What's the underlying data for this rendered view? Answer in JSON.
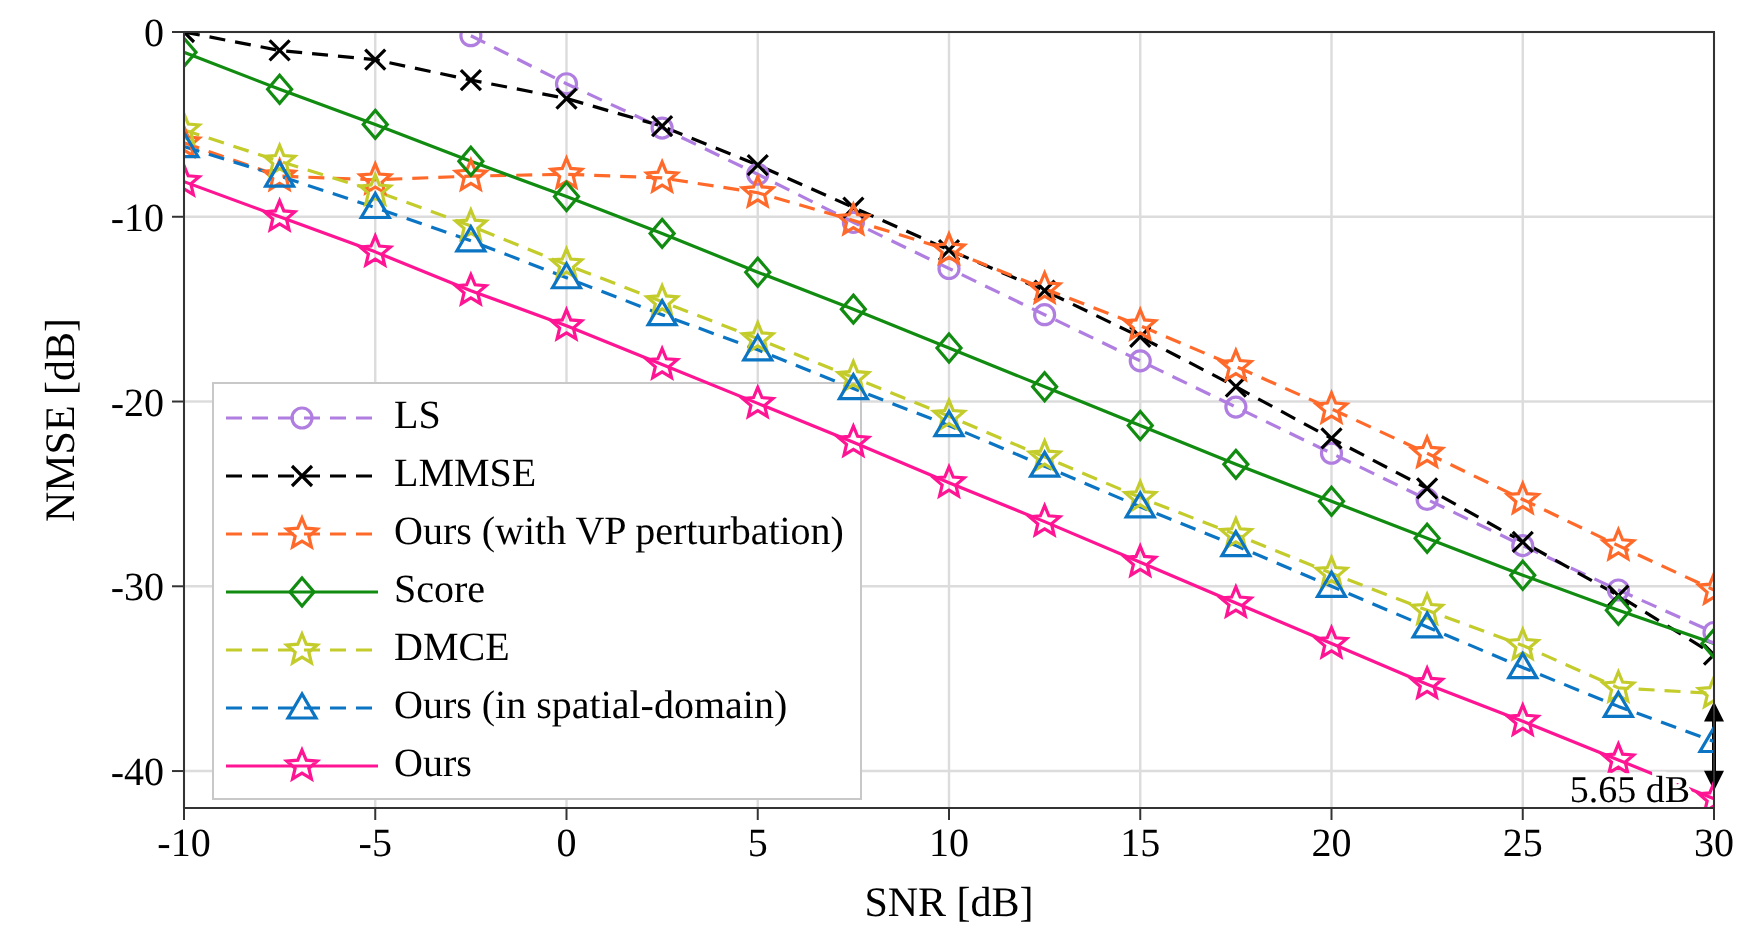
{
  "chart_data": {
    "type": "line",
    "xlabel": "SNR [dB]",
    "ylabel": "NMSE [dB]",
    "x": [
      -10,
      -7.5,
      -5,
      -2.5,
      0,
      2.5,
      5,
      7.5,
      10,
      12.5,
      15,
      17.5,
      20,
      22.5,
      25,
      27.5,
      30
    ],
    "series": [
      {
        "name": "LS",
        "color": "#b07ee0",
        "marker": "circle",
        "line_style": "dashed",
        "values": [
          null,
          null,
          null,
          -0.2,
          -2.8,
          -5.2,
          -7.7,
          -10.3,
          -12.8,
          -15.3,
          -17.8,
          -20.3,
          -22.8,
          -25.3,
          -27.8,
          -30.2,
          -32.5
        ]
      },
      {
        "name": "LMMSE",
        "color": "#000000",
        "marker": "cross",
        "line_style": "dashed",
        "values": [
          0,
          -1,
          -1.5,
          -2.6,
          -3.6,
          -5.1,
          -7.2,
          -9.5,
          -11.8,
          -14,
          -16.5,
          -19.2,
          -22,
          -24.7,
          -27.6,
          -30.5,
          -33.7
        ]
      },
      {
        "name": "Ours (with VP perturbation)",
        "color": "#ff6a2a",
        "marker": "star",
        "line_style": "dashed",
        "values": [
          -6,
          -7.8,
          -8,
          -7.8,
          -7.7,
          -7.9,
          -8.7,
          -10.2,
          -11.8,
          -13.9,
          -15.9,
          -18.1,
          -20.4,
          -22.8,
          -25.3,
          -27.8,
          -30.2
        ]
      },
      {
        "name": "Score",
        "color": "#118c11",
        "marker": "diamond",
        "line_style": "solid",
        "values": [
          -1.1,
          -3.1,
          -5,
          -7,
          -8.9,
          -10.9,
          -13,
          -15,
          -17.1,
          -19.2,
          -21.3,
          -23.4,
          -25.4,
          -27.4,
          -29.4,
          -31.3,
          -33.1
        ]
      },
      {
        "name": "DMCE",
        "color": "#c3cc2a",
        "marker": "star",
        "line_style": "dashed",
        "values": [
          -5.3,
          -7,
          -8.6,
          -10.5,
          -12.6,
          -14.6,
          -16.6,
          -18.7,
          -20.8,
          -23,
          -25.2,
          -27.2,
          -29.3,
          -31.3,
          -33.2,
          -35.5,
          -35.8
        ]
      },
      {
        "name": "Ours (in spatial-domain)",
        "color": "#0b75c4",
        "marker": "triangle",
        "line_style": "dashed",
        "values": [
          -6.2,
          -7.8,
          -9.5,
          -11.3,
          -13.3,
          -15.3,
          -17.2,
          -19.3,
          -21.3,
          -23.5,
          -25.7,
          -27.8,
          -30,
          -32.2,
          -34.4,
          -36.5,
          -38.4
        ]
      },
      {
        "name": "Ours",
        "color": "#ff1493",
        "marker": "star",
        "line_style": "solid",
        "values": [
          -8.1,
          -10,
          -11.9,
          -14,
          -15.9,
          -18,
          -20.1,
          -22.2,
          -24.4,
          -26.5,
          -28.7,
          -30.9,
          -33.1,
          -35.3,
          -37.3,
          -39.4,
          -41.5
        ]
      }
    ],
    "xlim": [
      -10,
      30
    ],
    "ylim": [
      -42,
      0
    ],
    "xticks": [
      -10,
      -5,
      0,
      5,
      10,
      15,
      20,
      25,
      30
    ],
    "yticks": [
      -40,
      -30,
      -20,
      -10,
      0
    ],
    "grid": true,
    "legend": "bottom left",
    "annotations": [
      {
        "text": "5.65 dB",
        "x": 30,
        "y": -41.2
      }
    ]
  }
}
